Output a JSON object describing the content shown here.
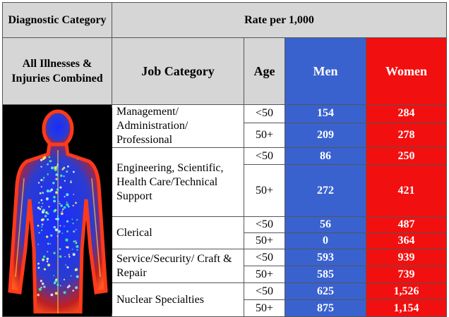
{
  "header": {
    "diagnostic_category": "Diagnostic Category",
    "rate": "Rate per 1,000",
    "all_combined": "All Illnesses & Injuries Combined",
    "job_category": "Job Category",
    "age": "Age",
    "men": "Men",
    "women": "Women"
  },
  "rows": [
    {
      "job": "Management/ Administration/ Professional",
      "ages": [
        {
          "age": "<50",
          "men": "154",
          "women": "284"
        },
        {
          "age": "50+",
          "men": "209",
          "women": "278"
        }
      ]
    },
    {
      "job": "Engineering, Scientific, Health Care/Technical Support",
      "ages": [
        {
          "age": "<50",
          "men": "86",
          "women": "250"
        },
        {
          "age": "50+",
          "men": "272",
          "women": "421"
        }
      ]
    },
    {
      "job": "Clerical",
      "ages": [
        {
          "age": "<50",
          "men": "56",
          "women": "487"
        },
        {
          "age": "50+",
          "men": "0",
          "women": "364"
        }
      ]
    },
    {
      "job": "Service/Security/ Craft & Repair",
      "ages": [
        {
          "age": "<50",
          "men": "593",
          "women": "939"
        },
        {
          "age": "50+",
          "men": "585",
          "women": "739"
        }
      ]
    },
    {
      "job": "Nuclear Specialties",
      "ages": [
        {
          "age": "<50",
          "men": "625",
          "women": "1,526"
        },
        {
          "age": "50+",
          "men": "875",
          "women": "1,154"
        }
      ]
    }
  ]
}
